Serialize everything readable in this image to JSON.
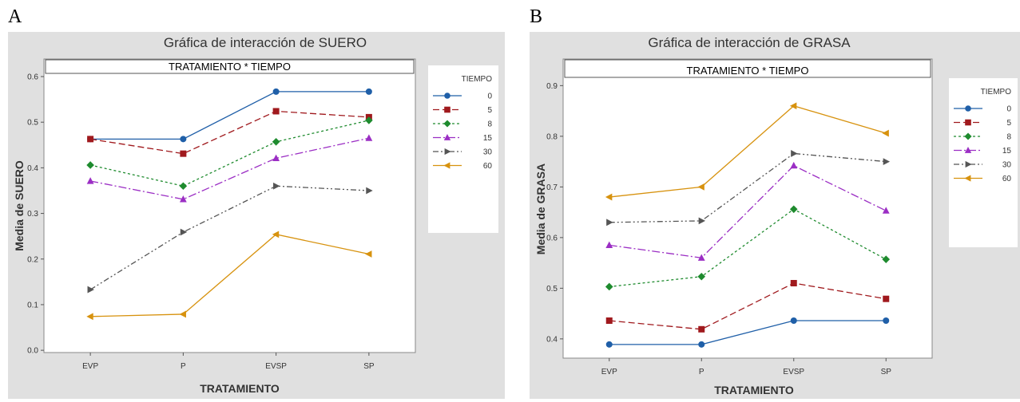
{
  "panels": [
    {
      "letter": "A"
    },
    {
      "letter": "B"
    }
  ],
  "chart_data": [
    {
      "type": "line",
      "title": "Gráfica de interacción de SUERO",
      "strip": "TRATAMIENTO * TIEMPO",
      "xlabel": "TRATAMIENTO",
      "ylabel": "Media de SUERO",
      "categories": [
        "EVP",
        "P",
        "EVSP",
        "SP"
      ],
      "ylim": [
        -0.005,
        0.6
      ],
      "yticks": [
        0.0,
        0.1,
        0.2,
        0.3,
        0.4,
        0.5,
        0.6
      ],
      "ytick_labels": [
        "0.0",
        "0.1",
        "0.2",
        "0.3",
        "0.4",
        "0.5",
        "0.6"
      ],
      "legend_title": "TIEMPO",
      "series": [
        {
          "name": "0",
          "values": [
            0.463,
            0.463,
            0.567,
            0.567
          ],
          "color": "#1f5fa8",
          "dash": "",
          "marker": "circle"
        },
        {
          "name": "5",
          "values": [
            0.463,
            0.431,
            0.524,
            0.511
          ],
          "color": "#a0191d",
          "dash": "8,4",
          "marker": "square"
        },
        {
          "name": "8",
          "values": [
            0.406,
            0.36,
            0.457,
            0.504
          ],
          "color": "#1e8b2e",
          "dash": "3,3",
          "marker": "diamond"
        },
        {
          "name": "15",
          "values": [
            0.371,
            0.331,
            0.421,
            0.465
          ],
          "color": "#9b2ec4",
          "dash": "10,3,2,3",
          "marker": "triangle-up"
        },
        {
          "name": "30",
          "values": [
            0.133,
            0.259,
            0.36,
            0.35
          ],
          "color": "#555555",
          "dash": "7,3,2,3,2,3",
          "marker": "triangle-right"
        },
        {
          "name": "60",
          "values": [
            0.074,
            0.079,
            0.254,
            0.211
          ],
          "color": "#d7920e",
          "dash": "",
          "marker": "triangle-left"
        }
      ]
    },
    {
      "type": "line",
      "title": "Gráfica de interacción de GRASA",
      "strip": "TRATAMIENTO * TIEMPO",
      "xlabel": "TRATAMIENTO",
      "ylabel": "Media de GRASA",
      "categories": [
        "EVP",
        "P",
        "EVSP",
        "SP"
      ],
      "ylim": [
        0.362,
        0.91
      ],
      "yticks": [
        0.4,
        0.5,
        0.6,
        0.7,
        0.8,
        0.9
      ],
      "ytick_labels": [
        "0.4",
        "0.5",
        "0.6",
        "0.7",
        "0.8",
        "0.9"
      ],
      "legend_title": "TIEMPO",
      "series": [
        {
          "name": "0",
          "values": [
            0.389,
            0.389,
            0.436,
            0.436
          ],
          "color": "#1f5fa8",
          "dash": "",
          "marker": "circle"
        },
        {
          "name": "5",
          "values": [
            0.436,
            0.419,
            0.51,
            0.479
          ],
          "color": "#a0191d",
          "dash": "8,4",
          "marker": "square"
        },
        {
          "name": "8",
          "values": [
            0.503,
            0.523,
            0.656,
            0.557
          ],
          "color": "#1e8b2e",
          "dash": "3,3",
          "marker": "diamond"
        },
        {
          "name": "15",
          "values": [
            0.585,
            0.56,
            0.742,
            0.653
          ],
          "color": "#9b2ec4",
          "dash": "10,3,2,3",
          "marker": "triangle-up"
        },
        {
          "name": "30",
          "values": [
            0.63,
            0.633,
            0.766,
            0.75
          ],
          "color": "#555555",
          "dash": "7,3,2,3,2,3",
          "marker": "triangle-right"
        },
        {
          "name": "60",
          "values": [
            0.68,
            0.7,
            0.86,
            0.806
          ],
          "color": "#d7920e",
          "dash": "",
          "marker": "triangle-left"
        }
      ]
    }
  ]
}
